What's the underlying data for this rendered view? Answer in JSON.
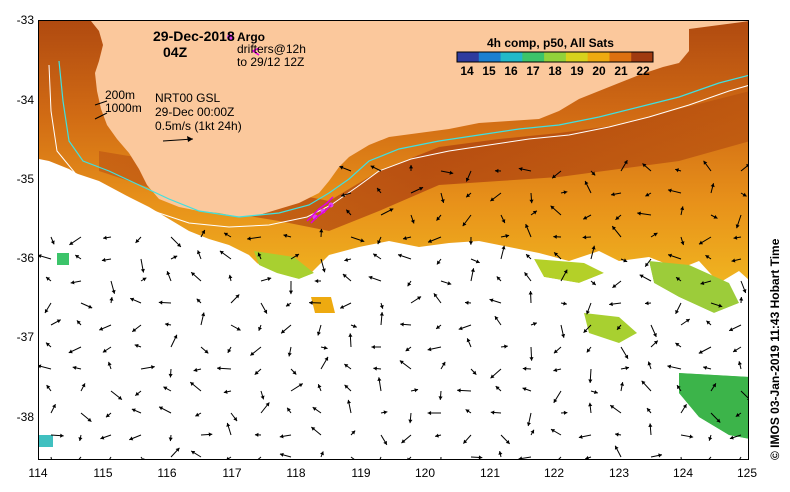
{
  "title": {
    "date": "29-Dec-2018",
    "time": "04Z"
  },
  "legend": {
    "argo_label": "Argo",
    "drifters_line1": "drifters@12h",
    "drifters_line2": "to 29/12 12Z",
    "colorbar_title": "4h comp, p50, All Sats",
    "colorbar_ticks": [
      "14",
      "15",
      "16",
      "17",
      "18",
      "19",
      "20",
      "21",
      "22"
    ],
    "colorbar_colors": [
      "#2e3b9e",
      "#1a7fd0",
      "#22b9c9",
      "#3cc46a",
      "#92d23a",
      "#d8d21c",
      "#eeaa10",
      "#dd7010",
      "#a03a10"
    ]
  },
  "info": {
    "depth_a": "200m",
    "depth_b": "1000m",
    "model": "NRT00 GSL",
    "model_time": "29-Dec 00:00Z",
    "scale": "0.5m/s (1kt 24h)"
  },
  "axes": {
    "x_ticks": [
      "114",
      "115",
      "116",
      "117",
      "118",
      "119",
      "120",
      "121",
      "122",
      "123",
      "124",
      "125"
    ],
    "y_ticks": [
      "-33",
      "-34",
      "-35",
      "-36",
      "-37",
      "-38"
    ]
  },
  "credit": "© IMOS 03-Jan-2019 11:43 Hobart Time",
  "colors": {
    "land": "#fbc89c",
    "argo": "#e040f0",
    "drifter": "#e000e0",
    "shelf_200": "#40e0e0",
    "shelf_1000": "#ffffff"
  }
}
